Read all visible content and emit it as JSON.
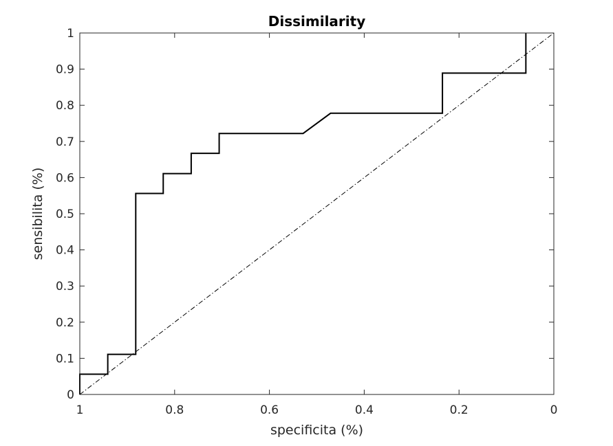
{
  "chart_data": {
    "type": "line",
    "title": "Dissimilarity",
    "xlabel": "specificita (%)",
    "ylabel": "sensibilita (%)",
    "xlim": [
      1,
      0
    ],
    "ylim": [
      0,
      1
    ],
    "x_reversed": true,
    "grid": false,
    "xticks": [
      1,
      0.8,
      0.6,
      0.4,
      0.2,
      0
    ],
    "xtick_labels": [
      "1",
      "0.8",
      "0.6",
      "0.4",
      "0.2",
      "0"
    ],
    "yticks": [
      0,
      0.1,
      0.2,
      0.3,
      0.4,
      0.5,
      0.6,
      0.7,
      0.8,
      0.9,
      1
    ],
    "ytick_labels": [
      "0",
      "0.1",
      "0.2",
      "0.3",
      "0.4",
      "0.5",
      "0.6",
      "0.7",
      "0.8",
      "0.9",
      "1"
    ],
    "series": [
      {
        "color": "#000000",
        "style": "solid",
        "x": [
          1,
          1,
          0.941,
          0.941,
          0.882,
          0.882,
          0.824,
          0.824,
          0.765,
          0.765,
          0.706,
          0.706,
          0.529,
          0.471,
          0.235,
          0.235,
          0.059,
          0.059
        ],
        "y": [
          0,
          0.056,
          0.056,
          0.111,
          0.111,
          0.556,
          0.556,
          0.611,
          0.611,
          0.667,
          0.667,
          0.722,
          0.722,
          0.778,
          0.778,
          0.889,
          0.889,
          1
        ]
      },
      {
        "color": "#000000",
        "style": "dashdot",
        "x": [
          1,
          0
        ],
        "y": [
          0,
          1
        ]
      }
    ]
  }
}
